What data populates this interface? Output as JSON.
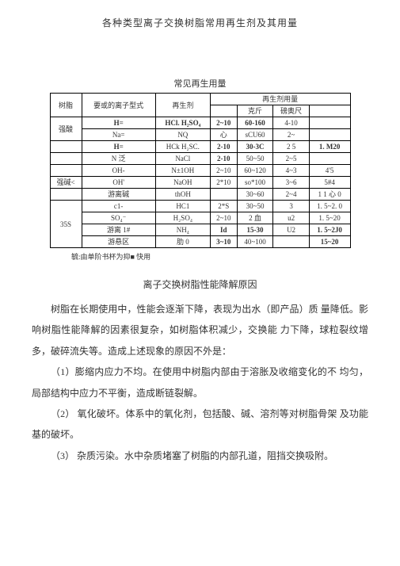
{
  "mainTitle": "各种类型离子交换树脂常用再生剂及其用量",
  "tableSubtitle": "常见再生用量",
  "headers": {
    "resin": "树脂",
    "ionForm": "要或的离子型式",
    "regenerant": "再生剂",
    "dosage": "再生剂用量",
    "kezhen": "克斤",
    "bangao": "磅奥尺"
  },
  "rows": [
    [
      "强酸",
      "H=",
      "HCl. H₂SO₄",
      "2~10",
      "60-160",
      "4-10",
      ""
    ],
    [
      "",
      "Na=",
      "NQ",
      "心",
      "sCU60",
      "2~",
      ""
    ],
    [
      "",
      "H=",
      "HCk H₂SC.",
      "2-10",
      "30-3C",
      "2 5",
      "1. M20"
    ],
    [
      "",
      "N 泛",
      "NaCl",
      "2-10",
      "50~50",
      "2~5",
      ""
    ],
    [
      "",
      "OH-",
      "N±1OH",
      "2~10",
      "60~120",
      "4~3",
      "4'5"
    ],
    [
      "强碱<",
      "OH'",
      "NaOH",
      "2*10",
      "so*100",
      "3~6",
      "5#4"
    ],
    [
      "",
      "游离碱",
      "thOH",
      "",
      "30~60",
      "2~4",
      "1 1 心 0"
    ],
    [
      "35S",
      "c1-",
      "HC1",
      "2*S",
      "30~50",
      "3",
      "1. 5~2. 0"
    ],
    [
      "",
      "SO₄⁻",
      "H₂SO₄",
      "2~10",
      "2 血",
      "u2",
      "1. 5~20"
    ],
    [
      "",
      "游离 1#",
      "NH₄",
      "Id",
      "15-30",
      "U2",
      "1. 5~2J0"
    ],
    [
      "",
      "游悬区",
      "肋 0",
      "3~10",
      "40~100",
      "",
      "15~20"
    ]
  ],
  "footnote": "毓:由单阶书杯为抑■ 快用",
  "sectionTitle": "离子交换树脂性能降解原因",
  "p1": "树脂在长期使用中，性能会逐渐下降，表现为出水（即产品）质 量降低。影响树脂性能降解的因素很复杂，如树脂体积减少，交换能 力下降，球粒裂纹增多，破碎流失等。造成上述现象的原因不外是：",
  "p2": "（1）膨缩内应力不均。在使用中树脂内部由于溶胀及收缩变化的不 均匀，局部结构中应力不平衡，造成断链裂解。",
  "p3": "（2） 氧化破坏。体系中的氧化剂，包括酸、碱、溶剂等对树脂骨架 及功能基的破坏。",
  "p4": "（3） 杂质污染。水中杂质堵塞了树脂的内部孔道，阻挡交换吸附。"
}
